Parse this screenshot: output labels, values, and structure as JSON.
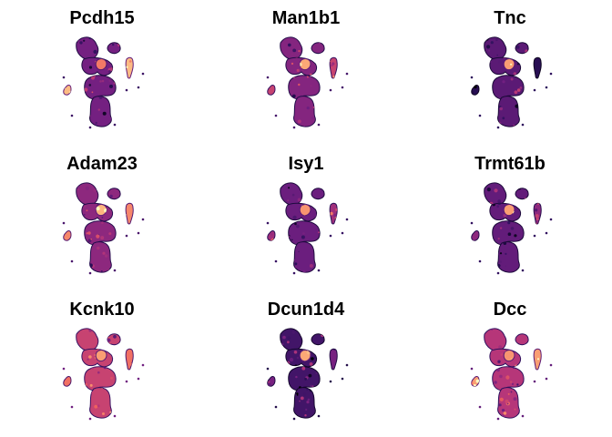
{
  "figure": {
    "type": "umap-feature-plot-grid",
    "rows": 3,
    "cols": 3,
    "color_scale": {
      "name": "magma",
      "stops": [
        "#000004",
        "#2c105c",
        "#711f81",
        "#b63679",
        "#ee605e",
        "#fdae78",
        "#fcfdbf"
      ]
    }
  },
  "chart_data": [
    {
      "type": "scatter",
      "title": "Pcdh15",
      "xlabel": "",
      "ylabel": "",
      "grid": false,
      "legend": "none",
      "expression_level": {
        "body": 0.34,
        "hotspot": 0.72,
        "peripheral_cluster": 0.86
      }
    },
    {
      "type": "scatter",
      "title": "Man1b1",
      "xlabel": "",
      "ylabel": "",
      "grid": false,
      "legend": "none",
      "expression_level": {
        "body": 0.38,
        "hotspot": 0.82,
        "peripheral_cluster": 0.55
      }
    },
    {
      "type": "scatter",
      "title": "Tnc",
      "xlabel": "",
      "ylabel": "",
      "grid": false,
      "legend": "none",
      "expression_level": {
        "body": 0.28,
        "hotspot": 0.8,
        "peripheral_cluster": 0.15
      }
    },
    {
      "type": "scatter",
      "title": "Adam23",
      "xlabel": "",
      "ylabel": "",
      "grid": false,
      "legend": "none",
      "expression_level": {
        "body": 0.4,
        "hotspot": 0.85,
        "peripheral_cluster": 0.75
      }
    },
    {
      "type": "scatter",
      "title": "Isy1",
      "xlabel": "",
      "ylabel": "",
      "grid": false,
      "legend": "none",
      "expression_level": {
        "body": 0.32,
        "hotspot": 0.78,
        "peripheral_cluster": 0.45
      }
    },
    {
      "type": "scatter",
      "title": "Trmt61b",
      "xlabel": "",
      "ylabel": "",
      "grid": false,
      "legend": "none",
      "expression_level": {
        "body": 0.3,
        "hotspot": 0.8,
        "peripheral_cluster": 0.4
      }
    },
    {
      "type": "scatter",
      "title": "Kcnk10",
      "xlabel": "",
      "ylabel": "",
      "grid": false,
      "legend": "none",
      "expression_level": {
        "body": 0.55,
        "hotspot": 0.8,
        "peripheral_cluster": 0.7
      }
    },
    {
      "type": "scatter",
      "title": "Dcun1d4",
      "xlabel": "",
      "ylabel": "",
      "grid": false,
      "legend": "none",
      "expression_level": {
        "body": 0.22,
        "hotspot": 0.82,
        "peripheral_cluster": 0.35
      }
    },
    {
      "type": "scatter",
      "title": "Dcc",
      "xlabel": "",
      "ylabel": "",
      "grid": false,
      "legend": "none",
      "expression_level": {
        "body": 0.5,
        "hotspot": 0.78,
        "peripheral_cluster": 0.8
      }
    }
  ]
}
